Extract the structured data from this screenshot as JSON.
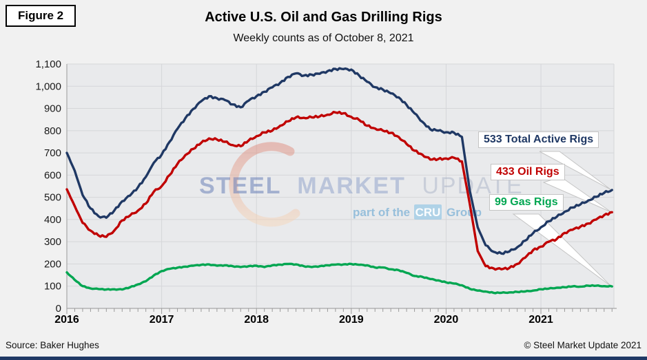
{
  "figure_label": "Figure 2",
  "header": {
    "title": "Active U.S. Oil and Gas Drilling Rigs",
    "subtitle": "Weekly counts as of October 8, 2021"
  },
  "watermark": {
    "word1": "STEEL",
    "word2": "MARKET",
    "word3": "UPDATE",
    "tagline_prefix": "part of the",
    "tagline_box": "CRU",
    "tagline_suffix": "Group"
  },
  "annotations": [
    {
      "series": "total",
      "text": "533 Total Active Rigs"
    },
    {
      "series": "oil",
      "text": "433 Oil Rigs"
    },
    {
      "series": "gas",
      "text": "99 Gas Rigs"
    }
  ],
  "footer": {
    "source": "Source: Baker Hughes",
    "copyright": "© Steel Market Update 2021"
  },
  "colors": {
    "background": "#f1f1f1",
    "plot_background": "#e9eaec",
    "gridline": "#d5d6d9",
    "axis": "#a8a8a8",
    "tick": "#9a9a9a",
    "footer_bar": "#1f3864",
    "annotation_border": "#c4c4c4",
    "callout_fill": "#ffffff"
  },
  "chart_data": {
    "type": "line",
    "title": "Active U.S. Oil and Gas Drilling Rigs",
    "subtitle": "Weekly counts as of October 8, 2021",
    "x_start_year": 2016,
    "x_end": 2021.77,
    "points_per_year": 12,
    "ylim": [
      0,
      1100
    ],
    "y_tick_step": 100,
    "grid": true,
    "legend": "callout-labels-right",
    "x_tick_labels": [
      "2016",
      "2017",
      "2018",
      "2019",
      "2020",
      "2021"
    ],
    "y_tick_labels": [
      "0",
      "100",
      "200",
      "300",
      "400",
      "500",
      "600",
      "700",
      "800",
      "900",
      "1,000",
      "1,100"
    ],
    "series": [
      {
        "name": "Total Active Rigs",
        "color": "#1f3864",
        "latest_value": 533,
        "monthly_values": [
          700,
          619,
          510,
          450,
          415,
          408,
          440,
          482,
          508,
          545,
          592,
          655,
          692,
          750,
          808,
          856,
          898,
          932,
          955,
          946,
          938,
          918,
          905,
          935,
          955,
          975,
          995,
          1015,
          1042,
          1058,
          1048,
          1052,
          1056,
          1068,
          1078,
          1077,
          1075,
          1048,
          1020,
          996,
          985,
          968,
          950,
          916,
          878,
          840,
          806,
          800,
          793,
          791,
          772,
          530,
          365,
          284,
          255,
          247,
          256,
          275,
          305,
          338,
          365,
          392,
          412,
          435,
          454,
          468,
          486,
          502,
          520,
          533
        ]
      },
      {
        "name": "Oil Rigs",
        "color": "#c00000",
        "latest_value": 433,
        "monthly_values": [
          536,
          460,
          385,
          350,
          328,
          322,
          350,
          396,
          418,
          440,
          472,
          525,
          550,
          600,
          650,
          690,
          718,
          745,
          765,
          760,
          750,
          735,
          730,
          755,
          775,
          792,
          800,
          822,
          842,
          860,
          858,
          860,
          864,
          872,
          882,
          878,
          862,
          848,
          822,
          810,
          800,
          790,
          772,
          740,
          710,
          692,
          670,
          672,
          675,
          678,
          662,
          470,
          258,
          190,
          180,
          176,
          182,
          200,
          228,
          262,
          278,
          300,
          312,
          340,
          354,
          368,
          382,
          400,
          420,
          433
        ]
      },
      {
        "name": "Gas Rigs",
        "color": "#00a651",
        "latest_value": 99,
        "monthly_values": [
          162,
          128,
          100,
          90,
          87,
          85,
          86,
          85,
          95,
          108,
          122,
          148,
          168,
          178,
          183,
          188,
          192,
          196,
          198,
          192,
          194,
          190,
          186,
          190,
          192,
          186,
          194,
          197,
          200,
          198,
          190,
          186,
          190,
          194,
          197,
          198,
          200,
          196,
          194,
          184,
          184,
          176,
          172,
          160,
          146,
          142,
          132,
          126,
          117,
          112,
          104,
          88,
          80,
          76,
          70,
          70,
          72,
          74,
          76,
          80,
          86,
          89,
          93,
          95,
          99,
          98,
          102,
          102,
          100,
          99
        ]
      }
    ]
  }
}
